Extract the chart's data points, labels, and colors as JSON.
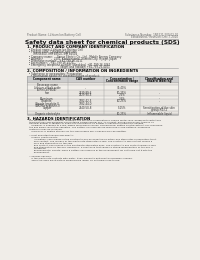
{
  "bg_color": "#f0ede8",
  "title": "Safety data sheet for chemical products (SDS)",
  "header_left": "Product Name: Lithium Ion Battery Cell",
  "header_right_line1": "Substance Number: 1N5221 500-02-01",
  "header_right_line2": "Established / Revision: Dec.7.2010",
  "section1_title": "1. PRODUCT AND COMPANY IDENTIFICATION",
  "section1_lines": [
    "  • Product name: Lithium Ion Battery Cell",
    "  • Product code: Cylindrical-type cell",
    "       IHR 66500, IHR 68500, IHR 66504",
    "  • Company name:     Sanyo Electric Co., Ltd., Mobile Energy Company",
    "  • Address:             2201, Kannonyama, Sumoto-City, Hyogo, Japan",
    "  • Telephone number:   +81-799-26-4111",
    "  • Fax number:   +81-799-26-4123",
    "  • Emergency telephone number (Weekday) +81-799-26-3062",
    "                                      (Night and holiday) +81-799-26-4101"
  ],
  "section2_title": "2. COMPOSITION / INFORMATION ON INGREDIENTS",
  "section2_sub1": "  • Substance or preparation: Preparation",
  "section2_sub2": "    • Information about the chemical nature of product:",
  "th_component": "Component name",
  "th_cas": "CAS number",
  "th_conc": "Concentration /\nConcentration range",
  "th_class": "Classification and\nhazard labeling",
  "table_rows": [
    [
      "Beverage name",
      "",
      "",
      ""
    ],
    [
      "Lithium cobalt oxide\n(LiMn/Co/PBO4)",
      "-",
      "30-40%",
      ""
    ],
    [
      "Iron",
      "7439-89-6\n7429-90-5",
      "10-25%\n2-5%",
      "-"
    ],
    [
      "Aluminum",
      "",
      "2-5%",
      "-"
    ],
    [
      "Graphite\n(Anode graphite-I)\n(AR-Mie graphite-I)",
      "7782-42-5\n7782-44-0",
      "10-25%",
      "-"
    ],
    [
      "Copper",
      "7440-50-8",
      "5-15%",
      "Sensitization of the skin\ngroup R43.2"
    ],
    [
      "Organic electrolyte",
      "-",
      "10-25%",
      "Inflammable liquid"
    ]
  ],
  "section3_title": "3. HAZARDS IDENTIFICATION",
  "section3_lines": [
    "   For the battery cell, chemical materials are stored in a hermetically sealed metal case, designed to withstand",
    "   temperatures and pressures encountered during normal use. As a result, during normal use, there is no",
    "   physical danger of ignition or explosion and there is no danger of hazardous materials leakage.",
    "      However, if exposed to a fire, added mechanical shocks, decomposed, written electric without any measures,",
    "   the gas inside cannot be operated. The battery cell case will be breached of fire-patterns, hazardous",
    "   materials may be released.",
    "      Moreover, if heated strongly by the surrounding fire, solid gas may be emitted.",
    "",
    "   • Most important hazard and effects:",
    "      Human health effects:",
    "         Inhalation: The release of the electrolyte has an anaesthesia action and stimulates a respiratory tract.",
    "         Skin contact: The release of the electrolyte stimulates a skin. The electrolyte skin contact causes a",
    "         sore and stimulation on the skin.",
    "         Eye contact: The release of the electrolyte stimulates eyes. The electrolyte eye contact causes a sore",
    "         and stimulation on the eye. Especially, a substance that causes a strong inflammation of the eye is",
    "         contained.",
    "         Environmental effects: Since a battery cell remains in the environment, do not throw out it into the",
    "         environment.",
    "",
    "   • Specific hazards:",
    "      If the electrolyte contacts with water, it will generate detrimental hydrogen fluoride.",
    "      Since the used electrolyte is inflammable liquid, do not bring close to fire."
  ],
  "line_color": "#999999",
  "text_color": "#333333",
  "title_color": "#111111",
  "section_color": "#000000",
  "header_color": "#666666",
  "table_header_bg": "#cccccc",
  "table_row_bg1": "#e8e5e0",
  "table_row_bg2": "#f2efea"
}
